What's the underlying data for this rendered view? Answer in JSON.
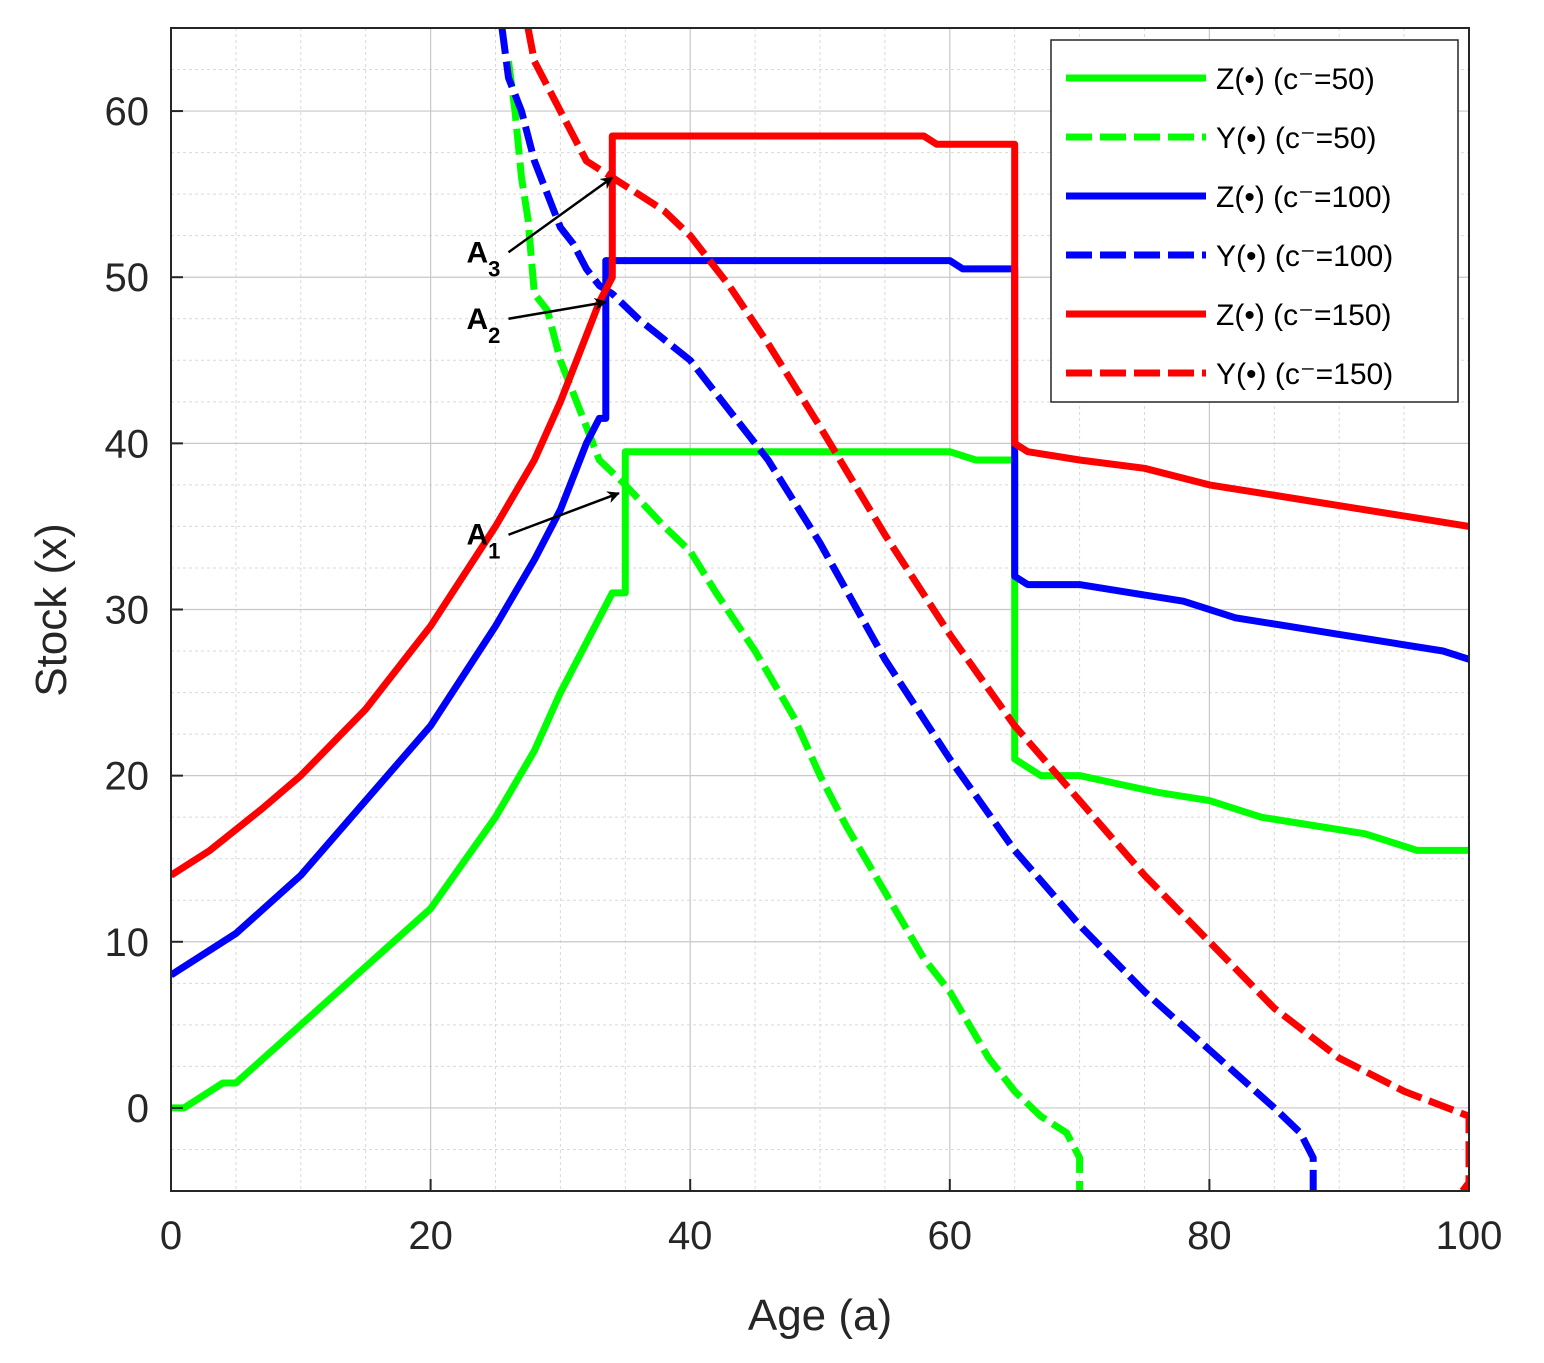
{
  "chart_data": {
    "type": "line",
    "title": "",
    "xlabel": "Age (a)",
    "ylabel": "Stock (x)",
    "xlim": [
      0,
      100
    ],
    "ylim": [
      -5,
      65
    ],
    "xticks": [
      0,
      20,
      40,
      60,
      80,
      100
    ],
    "yticks": [
      0,
      10,
      20,
      30,
      40,
      50,
      60
    ],
    "xtick_labels": [
      "0",
      "20",
      "40",
      "60",
      "80",
      "100"
    ],
    "ytick_labels": [
      "0",
      "10",
      "20",
      "30",
      "40",
      "50",
      "60"
    ],
    "grid": true,
    "minor_grid": true,
    "legend_position": "top-right",
    "series": [
      {
        "name": "Z(•) (c⁻=50)",
        "color": "#00ff00",
        "style": "solid",
        "points": [
          [
            0,
            0
          ],
          [
            1,
            0
          ],
          [
            4,
            1.5
          ],
          [
            5,
            1.5
          ],
          [
            10,
            5
          ],
          [
            15,
            8.5
          ],
          [
            20,
            12
          ],
          [
            25,
            17.5
          ],
          [
            28,
            21.5
          ],
          [
            30,
            25
          ],
          [
            32,
            28
          ],
          [
            34,
            31
          ],
          [
            35,
            31
          ],
          [
            35,
            39.5
          ],
          [
            60,
            39.5
          ],
          [
            62,
            39
          ],
          [
            65,
            39
          ],
          [
            65,
            21
          ],
          [
            67,
            20
          ],
          [
            70,
            20
          ],
          [
            73,
            19.5
          ],
          [
            76,
            19
          ],
          [
            80,
            18.5
          ],
          [
            84,
            17.5
          ],
          [
            88,
            17
          ],
          [
            92,
            16.5
          ],
          [
            96,
            15.5
          ],
          [
            100,
            15.5
          ]
        ]
      },
      {
        "name": "Y(•) (c⁻=50)",
        "color": "#00ff00",
        "style": "dashed",
        "points": [
          [
            26,
            63
          ],
          [
            26.5,
            60
          ],
          [
            27,
            56
          ],
          [
            27.5,
            53.5
          ],
          [
            28,
            49
          ],
          [
            29,
            48
          ],
          [
            30,
            45
          ],
          [
            31,
            43
          ],
          [
            32,
            41
          ],
          [
            33,
            39
          ],
          [
            35,
            37.5
          ],
          [
            38,
            35
          ],
          [
            40,
            33.5
          ],
          [
            42,
            31
          ],
          [
            45,
            27.5
          ],
          [
            48,
            23.5
          ],
          [
            50,
            20
          ],
          [
            52,
            17
          ],
          [
            55,
            13
          ],
          [
            58,
            9
          ],
          [
            60,
            7
          ],
          [
            63,
            3
          ],
          [
            65,
            1
          ],
          [
            67,
            -0.5
          ],
          [
            69,
            -1.5
          ],
          [
            70,
            -3
          ],
          [
            70,
            -5
          ]
        ]
      },
      {
        "name": "Z(•) (c⁻=100)",
        "color": "#0000ff",
        "style": "solid",
        "points": [
          [
            0,
            8
          ],
          [
            5,
            10.5
          ],
          [
            10,
            14
          ],
          [
            15,
            18.5
          ],
          [
            20,
            23
          ],
          [
            25,
            29
          ],
          [
            28,
            33
          ],
          [
            30,
            36
          ],
          [
            32,
            40
          ],
          [
            33,
            41.5
          ],
          [
            33.5,
            41.5
          ],
          [
            33.5,
            51
          ],
          [
            60,
            51
          ],
          [
            61,
            50.5
          ],
          [
            65,
            50.5
          ],
          [
            65,
            32
          ],
          [
            66,
            31.5
          ],
          [
            70,
            31.5
          ],
          [
            74,
            31
          ],
          [
            78,
            30.5
          ],
          [
            82,
            29.5
          ],
          [
            86,
            29
          ],
          [
            90,
            28.5
          ],
          [
            94,
            28
          ],
          [
            98,
            27.5
          ],
          [
            100,
            27
          ]
        ]
      },
      {
        "name": "Y(•) (c⁻=100)",
        "color": "#0000ff",
        "style": "dashed",
        "points": [
          [
            25.5,
            65
          ],
          [
            26,
            62
          ],
          [
            27,
            60
          ],
          [
            28,
            57
          ],
          [
            29,
            55
          ],
          [
            30,
            53
          ],
          [
            31,
            52
          ],
          [
            32,
            50.5
          ],
          [
            33,
            49.5
          ],
          [
            34,
            49
          ],
          [
            36,
            47.5
          ],
          [
            40,
            45
          ],
          [
            43,
            42
          ],
          [
            46,
            39
          ],
          [
            50,
            34
          ],
          [
            55,
            27
          ],
          [
            60,
            21
          ],
          [
            65,
            15.5
          ],
          [
            70,
            11
          ],
          [
            75,
            7
          ],
          [
            80,
            3.5
          ],
          [
            85,
            0
          ],
          [
            87,
            -1.5
          ],
          [
            88,
            -3
          ],
          [
            88,
            -5
          ]
        ]
      },
      {
        "name": "Z(•) (c⁻=150)",
        "color": "#ff0000",
        "style": "solid",
        "points": [
          [
            0,
            14
          ],
          [
            3,
            15.5
          ],
          [
            7,
            18
          ],
          [
            10,
            20
          ],
          [
            15,
            24
          ],
          [
            20,
            29
          ],
          [
            25,
            35
          ],
          [
            28,
            39
          ],
          [
            30,
            42.5
          ],
          [
            32,
            46.5
          ],
          [
            33,
            48.5
          ],
          [
            34,
            50
          ],
          [
            34,
            58.5
          ],
          [
            58,
            58.5
          ],
          [
            59,
            58
          ],
          [
            65,
            58
          ],
          [
            65,
            40
          ],
          [
            66,
            39.5
          ],
          [
            70,
            39
          ],
          [
            75,
            38.5
          ],
          [
            80,
            37.5
          ],
          [
            84,
            37
          ],
          [
            88,
            36.5
          ],
          [
            92,
            36
          ],
          [
            96,
            35.5
          ],
          [
            100,
            35
          ]
        ]
      },
      {
        "name": "Y(•) (c⁻=150)",
        "color": "#ff0000",
        "style": "dashed",
        "points": [
          [
            27.5,
            65
          ],
          [
            28,
            63
          ],
          [
            29,
            61.5
          ],
          [
            30,
            60
          ],
          [
            31,
            58.5
          ],
          [
            32,
            57
          ],
          [
            34,
            56
          ],
          [
            36,
            55
          ],
          [
            38,
            54
          ],
          [
            40,
            52.5
          ],
          [
            43,
            49.5
          ],
          [
            46,
            46
          ],
          [
            50,
            41
          ],
          [
            55,
            34.5
          ],
          [
            60,
            28.5
          ],
          [
            65,
            23
          ],
          [
            70,
            18.5
          ],
          [
            75,
            14
          ],
          [
            80,
            10
          ],
          [
            85,
            6
          ],
          [
            90,
            3
          ],
          [
            95,
            1
          ],
          [
            100,
            -0.5
          ],
          [
            100,
            -4.5
          ],
          [
            99.5,
            -5
          ]
        ]
      }
    ],
    "annotations": [
      {
        "label": "A",
        "subscript": "3",
        "from": [
          26,
          51.5
        ],
        "to": [
          34,
          56
        ]
      },
      {
        "label": "A",
        "subscript": "2",
        "from": [
          26,
          47.5
        ],
        "to": [
          33.5,
          48.5
        ]
      },
      {
        "label": "A",
        "subscript": "1",
        "from": [
          26,
          34.5
        ],
        "to": [
          34.5,
          37
        ]
      }
    ]
  }
}
